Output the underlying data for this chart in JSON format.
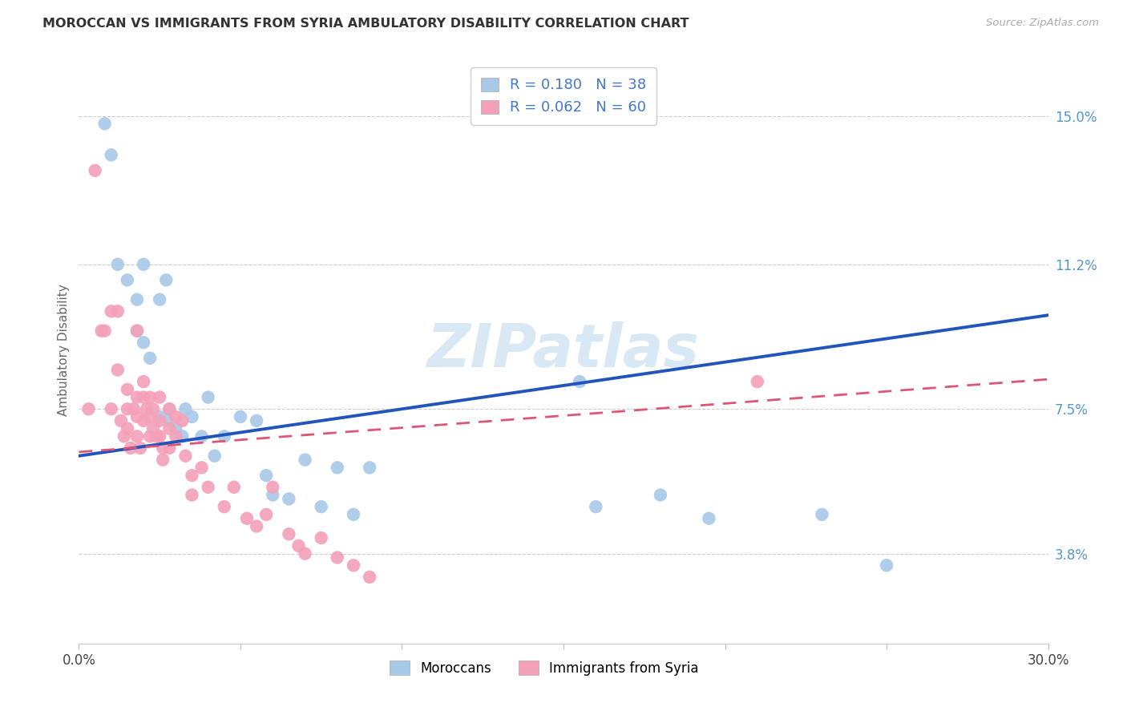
{
  "title": "MOROCCAN VS IMMIGRANTS FROM SYRIA AMBULATORY DISABILITY CORRELATION CHART",
  "source": "Source: ZipAtlas.com",
  "ylabel": "Ambulatory Disability",
  "yticks": [
    0.038,
    0.075,
    0.112,
    0.15
  ],
  "ytick_labels": [
    "3.8%",
    "7.5%",
    "11.2%",
    "15.0%"
  ],
  "xmin": 0.0,
  "xmax": 0.3,
  "ymin": 0.015,
  "ymax": 0.165,
  "blue_color": "#a8c8e8",
  "pink_color": "#f4a0b8",
  "blue_line_color": "#2255bb",
  "pink_line_color": "#dd5577",
  "watermark_text": "ZIPatlas",
  "label1": "Moroccans",
  "label2": "Immigrants from Syria",
  "R1": "0.180",
  "N1": "38",
  "R2": "0.062",
  "N2": "60",
  "blue_slope": 0.12,
  "blue_intercept": 0.063,
  "pink_slope": 0.062,
  "pink_intercept": 0.064,
  "blue_points_x": [
    0.008,
    0.01,
    0.012,
    0.015,
    0.018,
    0.018,
    0.02,
    0.02,
    0.022,
    0.025,
    0.025,
    0.027,
    0.028,
    0.028,
    0.03,
    0.032,
    0.033,
    0.035,
    0.038,
    0.04,
    0.042,
    0.045,
    0.05,
    0.055,
    0.058,
    0.06,
    0.065,
    0.07,
    0.075,
    0.08,
    0.085,
    0.09,
    0.155,
    0.16,
    0.18,
    0.195,
    0.23,
    0.25
  ],
  "blue_points_y": [
    0.148,
    0.14,
    0.112,
    0.108,
    0.103,
    0.095,
    0.092,
    0.112,
    0.088,
    0.103,
    0.073,
    0.108,
    0.075,
    0.072,
    0.07,
    0.068,
    0.075,
    0.073,
    0.068,
    0.078,
    0.063,
    0.068,
    0.073,
    0.072,
    0.058,
    0.053,
    0.052,
    0.062,
    0.05,
    0.06,
    0.048,
    0.06,
    0.082,
    0.05,
    0.053,
    0.047,
    0.048,
    0.035
  ],
  "pink_points_x": [
    0.003,
    0.005,
    0.007,
    0.008,
    0.01,
    0.01,
    0.012,
    0.012,
    0.013,
    0.014,
    0.015,
    0.015,
    0.015,
    0.016,
    0.017,
    0.018,
    0.018,
    0.018,
    0.018,
    0.019,
    0.02,
    0.02,
    0.02,
    0.021,
    0.022,
    0.022,
    0.022,
    0.023,
    0.023,
    0.024,
    0.025,
    0.025,
    0.025,
    0.026,
    0.026,
    0.028,
    0.028,
    0.028,
    0.03,
    0.03,
    0.032,
    0.033,
    0.035,
    0.035,
    0.038,
    0.04,
    0.045,
    0.048,
    0.052,
    0.055,
    0.058,
    0.06,
    0.065,
    0.068,
    0.07,
    0.075,
    0.08,
    0.085,
    0.09,
    0.21
  ],
  "pink_points_y": [
    0.075,
    0.136,
    0.095,
    0.095,
    0.1,
    0.075,
    0.1,
    0.085,
    0.072,
    0.068,
    0.08,
    0.075,
    0.07,
    0.065,
    0.075,
    0.095,
    0.078,
    0.073,
    0.068,
    0.065,
    0.082,
    0.078,
    0.072,
    0.075,
    0.078,
    0.073,
    0.068,
    0.075,
    0.07,
    0.068,
    0.078,
    0.072,
    0.068,
    0.065,
    0.062,
    0.075,
    0.07,
    0.065,
    0.073,
    0.068,
    0.072,
    0.063,
    0.058,
    0.053,
    0.06,
    0.055,
    0.05,
    0.055,
    0.047,
    0.045,
    0.048,
    0.055,
    0.043,
    0.04,
    0.038,
    0.042,
    0.037,
    0.035,
    0.032,
    0.082
  ]
}
